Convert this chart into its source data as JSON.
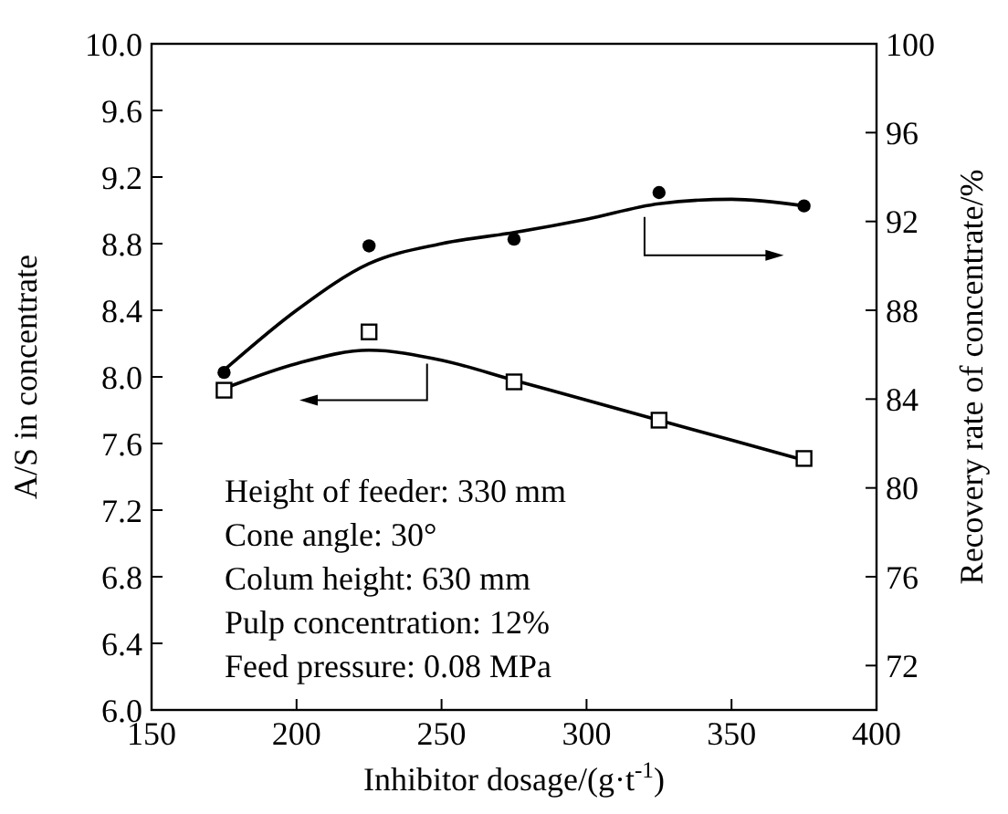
{
  "chart_data": {
    "type": "scatter",
    "xlabel": "Inhibitor dosage/(g·t$^{-1}$)",
    "ylabel": "A/S in concentrate",
    "y2label": "Recovery rate of concentrate/%",
    "xlim": [
      150,
      400
    ],
    "xticks": [
      150,
      200,
      250,
      300,
      350,
      400
    ],
    "ylim": [
      6.0,
      10.0
    ],
    "yticks": [
      {
        "value": 6.0,
        "label": "6.0"
      },
      {
        "value": 6.4,
        "label": "6.4"
      },
      {
        "value": 6.8,
        "label": "6.8"
      },
      {
        "value": 7.2,
        "label": "7.2"
      },
      {
        "value": 7.6,
        "label": "7.6"
      },
      {
        "value": 8.0,
        "label": "8.0"
      },
      {
        "value": 8.4,
        "label": "8.4"
      },
      {
        "value": 8.8,
        "label": "8.8"
      },
      {
        "value": 9.2,
        "label": "9.2"
      },
      {
        "value": 9.6,
        "label": "9.6"
      },
      {
        "value": 10.0,
        "label": "10.0"
      }
    ],
    "y2lim": [
      70,
      100
    ],
    "y2ticks": [
      72,
      76,
      80,
      84,
      88,
      92,
      96,
      100
    ],
    "grid": false,
    "series": [
      {
        "type": "line",
        "color": "#000000",
        "marker": "none",
        "x": [
          175,
          200,
          225,
          250,
          275,
          300,
          325,
          350,
          375
        ],
        "values": [
          7.93,
          8.08,
          8.16,
          8.1,
          7.98,
          7.86,
          7.74,
          7.62,
          7.5
        ]
      },
      {
        "type": "line",
        "color": "#000000",
        "marker": "none",
        "axis": "y2",
        "x": [
          175,
          200,
          225,
          250,
          275,
          300,
          325,
          350,
          375
        ],
        "values": [
          85.3,
          88.0,
          90.1,
          91.0,
          91.5,
          92.1,
          92.8,
          93.0,
          92.7
        ]
      },
      {
        "color": "#000000",
        "marker": "square",
        "x": [
          175,
          225,
          275,
          325,
          375
        ],
        "values": [
          7.92,
          8.27,
          7.97,
          7.74,
          7.51
        ]
      },
      {
        "color": "#000000",
        "marker": "circle",
        "axis": "y2",
        "x": [
          175,
          225,
          275,
          325,
          375
        ],
        "values": [
          85.2,
          90.9,
          91.2,
          93.3,
          92.7
        ]
      }
    ],
    "annotations": [
      "Height of feeder: 330 mm",
      "Cone angle: 30°",
      "Colum height: 630 mm",
      "Pulp concentration: 12%",
      "Feed pressure: 0.08 MPa"
    ]
  }
}
